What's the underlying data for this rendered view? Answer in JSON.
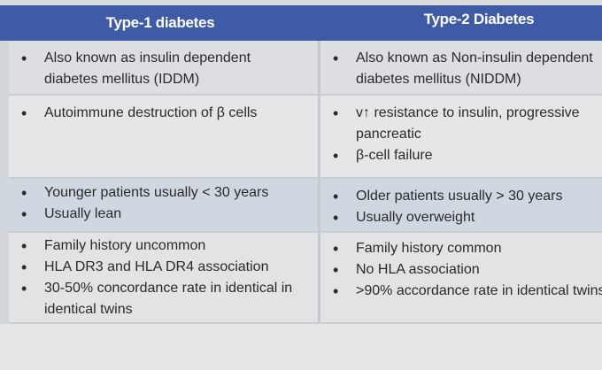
{
  "table": {
    "headers": [
      "Type-1 diabetes",
      "Type-2 Diabetes"
    ],
    "header_color": "#3f5ba6",
    "rows": [
      {
        "type1": [
          "Also known as insulin dependent diabetes mellitus (IDDM)"
        ],
        "type2": [
          "Also known as Non-insulin dependent diabetes mellitus (NIDDM)"
        ]
      },
      {
        "type1": [
          "Autoimmune destruction of β cells"
        ],
        "type2": [
          "v↑ resistance to insulin, progressive pancreatic",
          "β-cell failure"
        ]
      },
      {
        "type1": [
          "Younger patients usually < 30 years",
          "Usually lean"
        ],
        "type2": [
          "Older patients usually > 30 years",
          "Usually overweight"
        ]
      },
      {
        "type1": [
          "Family history uncommon",
          "HLA DR3 and HLA DR4 association",
          "30-50% concordance rate in identical in identical twins"
        ],
        "type2": [
          "Family history common",
          "No HLA association",
          ">90% accordance rate in identical twins"
        ]
      }
    ]
  }
}
